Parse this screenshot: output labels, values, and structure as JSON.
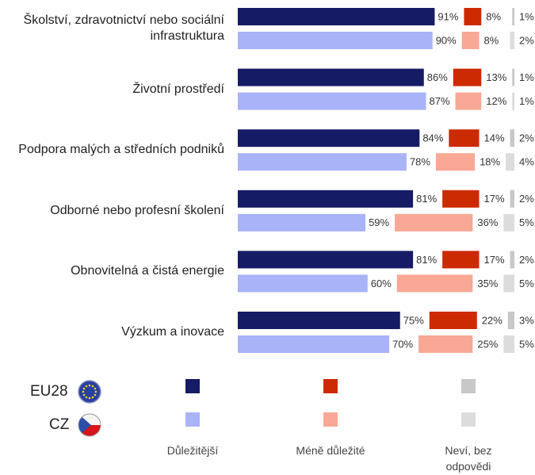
{
  "chart_data": {
    "type": "grouped-segment-bar",
    "categories": [
      "Školství, zdravotnictví nebo sociální infrastruktura",
      "Životní prostředí",
      "Podpora malých a středních podniků",
      "Odborné nebo profesní školení",
      "Obnovitelná a čistá energie",
      "Výzkum a inovace"
    ],
    "rows": [
      {
        "name": "EU28",
        "series": [
          {
            "name": "Důležitější",
            "color": "#161b66",
            "values": [
              91,
              86,
              84,
              81,
              81,
              75
            ],
            "value_labels": [
              "91%",
              "86%",
              "84%",
              "81%",
              "81%",
              "75%"
            ]
          },
          {
            "name": "Méně důležité",
            "color": "#cc2a00",
            "values": [
              8,
              13,
              14,
              17,
              17,
              22
            ],
            "value_labels": [
              "8%",
              "13%",
              "14%",
              "17%",
              "17%",
              "22%"
            ]
          },
          {
            "name": "Neví, bez odpovědi",
            "color": "#c8c8c8",
            "values": [
              1,
              1,
              2,
              2,
              2,
              3
            ],
            "value_labels": [
              "1%",
              "1%",
              "2%",
              "2%",
              "2%",
              "3%"
            ]
          }
        ]
      },
      {
        "name": "CZ",
        "series": [
          {
            "color": "#a8b3f8",
            "values": [
              90,
              87,
              78,
              59,
              60,
              70
            ],
            "value_labels": [
              "90%",
              "87%",
              "78%",
              "59%",
              "60%",
              "70%"
            ]
          },
          {
            "color": "#f8a894",
            "values": [
              8,
              12,
              18,
              36,
              35,
              25
            ],
            "value_labels": [
              "8%",
              "12%",
              "18%",
              "36%",
              "35%",
              "25%"
            ]
          },
          {
            "color": "#dcdcdc",
            "values": [
              2,
              1,
              4,
              5,
              5,
              5
            ],
            "value_labels": [
              "2%",
              "1%",
              "4%",
              "5%",
              "5%",
              "5%"
            ]
          }
        ]
      }
    ]
  }
}
